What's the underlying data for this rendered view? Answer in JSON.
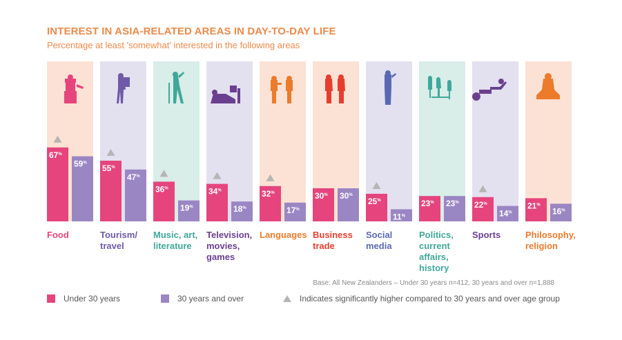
{
  "colors": {
    "under30": "#e5457c",
    "over30": "#9b86c4",
    "triangle": "#b5b5b5",
    "title": "#ec8a4a"
  },
  "chart_data": {
    "type": "bar",
    "title": "INTEREST IN ASIA-RELATED AREAS IN DAY-TO-DAY LIFE",
    "subtitle": "Percentage at least 'somewhat' interested in the following areas",
    "ylim": [
      0,
      100
    ],
    "value_suffix": "%",
    "categories": [
      {
        "label": [
          "Food"
        ],
        "bg": "#fbe2d4",
        "color": "#e5457c",
        "icon": "chef-icon",
        "significant": true
      },
      {
        "label": [
          "Tourism/",
          "travel"
        ],
        "bg": "#e3e0f0",
        "color": "#6e5aa8",
        "icon": "backpacker-icon",
        "significant": true
      },
      {
        "label": [
          "Music, art,",
          "literature"
        ],
        "bg": "#d9ede9",
        "color": "#3fa89a",
        "icon": "singer-icon",
        "significant": true
      },
      {
        "label": [
          "Television,",
          "movies,",
          "games"
        ],
        "bg": "#e3e0f0",
        "color": "#6b3f8f",
        "icon": "gamer-icon",
        "significant": true
      },
      {
        "label": [
          "Languages"
        ],
        "bg": "#fbe2d4",
        "color": "#ec7b2b",
        "icon": "conversation-icon",
        "significant": true
      },
      {
        "label": [
          "Business",
          "trade"
        ],
        "bg": "#fbe2d4",
        "color": "#e63e2e",
        "icon": "business-people-icon",
        "significant": false
      },
      {
        "label": [
          "Social",
          "media"
        ],
        "bg": "#e3e0f0",
        "color": "#5a68b4",
        "icon": "phone-user-icon",
        "significant": true
      },
      {
        "label": [
          "Politics,",
          "current",
          "affairs,",
          "history"
        ],
        "bg": "#d9ede9",
        "color": "#3fa89a",
        "icon": "politics-icon",
        "significant": false
      },
      {
        "label": [
          "Sports"
        ],
        "bg": "#e3e0f0",
        "color": "#6b3f8f",
        "icon": "athlete-icon",
        "significant": true
      },
      {
        "label": [
          "Philosophy,",
          "religion"
        ],
        "bg": "#fbe2d4",
        "color": "#ec7b2b",
        "icon": "meditation-icon",
        "significant": false
      }
    ],
    "series": [
      {
        "name": "Under 30 years",
        "values": [
          67,
          55,
          36,
          34,
          32,
          30,
          25,
          23,
          22,
          21
        ]
      },
      {
        "name": "30 years and over",
        "values": [
          59,
          47,
          19,
          18,
          17,
          30,
          11,
          23,
          14,
          16
        ]
      }
    ]
  },
  "footnote": "Base: All New Zealanders – Under 30 years n=412, 30 years and over n=1,888",
  "legend": {
    "under30": "Under 30 years",
    "over30": "30 years and over",
    "triangle": "Indicates significantly higher compared to 30 years and over age group"
  }
}
